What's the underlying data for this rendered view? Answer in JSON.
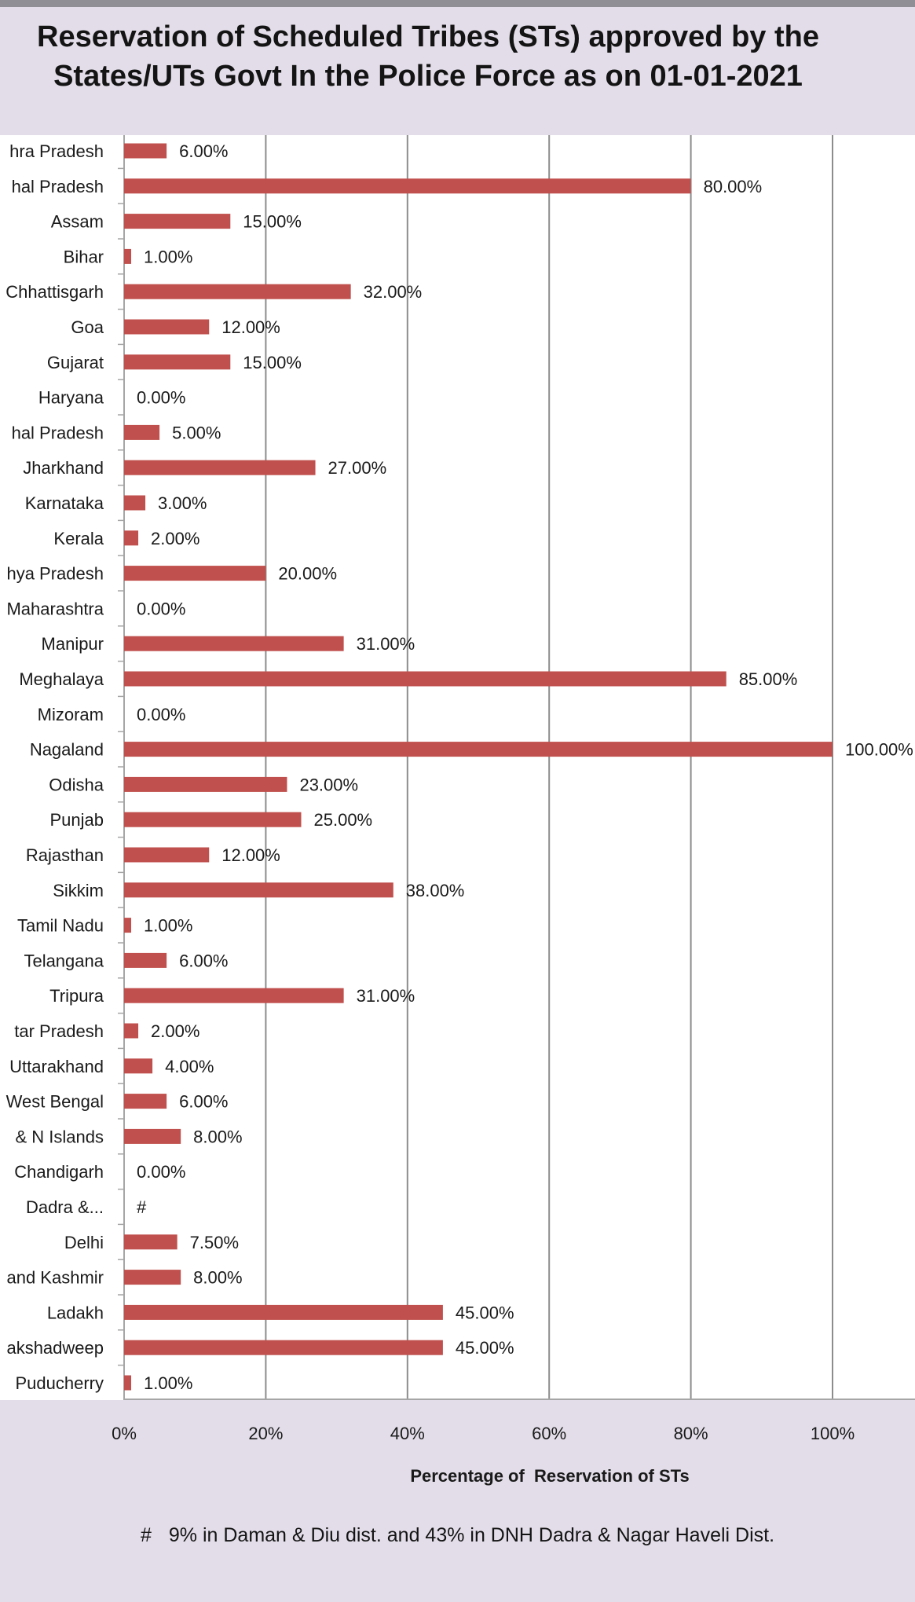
{
  "title": "Reservation of Scheduled Tribes (STs) approved by the\nStates/UTs Govt In the Police Force as on 01-01-2021",
  "footnote_mark": "#",
  "footnote_text": "9% in Daman & Diu dist. and 43% in DNH Dadra & Nagar Haveli Dist.",
  "colors": {
    "bar": "#c0504d",
    "grid": "#8c8c8c",
    "axis": "#a6a6a6",
    "plot_bg": "#ffffff",
    "page_bg": "#e3dde9"
  },
  "chart_data": {
    "type": "bar",
    "orientation": "horizontal",
    "title": "Reservation of Scheduled Tribes (STs) approved by the States/UTs Govt In the Police Force as on 01-01-2021",
    "xlabel": "Percentage of  Reservation of STs",
    "ylabel": "",
    "xlim": [
      0,
      100
    ],
    "x_ticks": [
      "0%",
      "20%",
      "40%",
      "60%",
      "80%",
      "100%"
    ],
    "grid": true,
    "categories": [
      "hra Pradesh",
      "hal Pradesh",
      "Assam",
      "Bihar",
      "Chhattisgarh",
      "Goa",
      "Gujarat",
      "Haryana",
      "hal Pradesh",
      "Jharkhand",
      "Karnataka",
      "Kerala",
      "hya Pradesh",
      "Maharashtra",
      "Manipur",
      "Meghalaya",
      "Mizoram",
      "Nagaland",
      "Odisha",
      "Punjab",
      "Rajasthan",
      "Sikkim",
      "Tamil Nadu",
      "Telangana",
      "Tripura",
      "tar Pradesh",
      "Uttarakhand",
      "West Bengal",
      "& N Islands",
      "Chandigarh",
      "Dadra &...",
      "Delhi",
      "and Kashmir",
      "Ladakh",
      "akshadweep",
      "Puducherry"
    ],
    "values": [
      6,
      80,
      15,
      1,
      32,
      12,
      15,
      0,
      5,
      27,
      3,
      2,
      20,
      0,
      31,
      85,
      0,
      100,
      23,
      25,
      12,
      38,
      1,
      6,
      31,
      2,
      4,
      6,
      8,
      0,
      null,
      7.5,
      8,
      45,
      45,
      1
    ],
    "data_labels": [
      "6.00%",
      "80.00%",
      "15.00%",
      "1.00%",
      "32.00%",
      "12.00%",
      "15.00%",
      "0.00%",
      "5.00%",
      "27.00%",
      "3.00%",
      "2.00%",
      "20.00%",
      "0.00%",
      "31.00%",
      "85.00%",
      "0.00%",
      "100.00%",
      "23.00%",
      "25.00%",
      "12.00%",
      "38.00%",
      "1.00%",
      "6.00%",
      "31.00%",
      "2.00%",
      "4.00%",
      "6.00%",
      "8.00%",
      "0.00%",
      "#",
      "7.50%",
      "8.00%",
      "45.00%",
      "45.00%",
      "1.00%"
    ]
  }
}
